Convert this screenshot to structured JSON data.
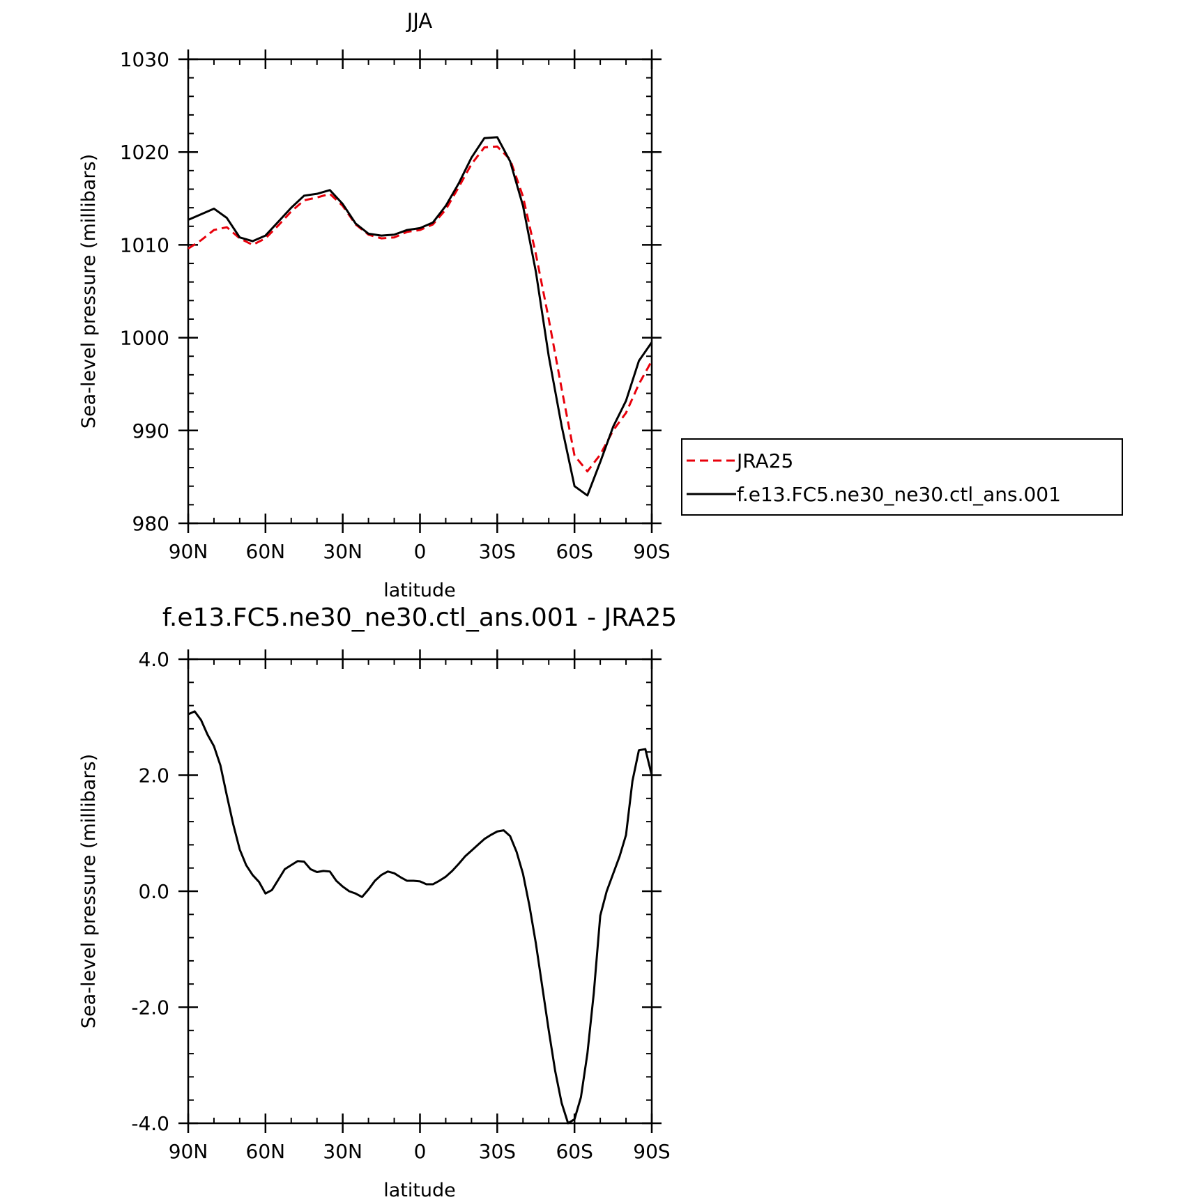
{
  "chart_data": [
    {
      "type": "line",
      "title": "JJA",
      "xlabel": "latitude",
      "ylabel": "Sea-level pressure (millibars)",
      "xlim": [
        90,
        -90
      ],
      "ylim": [
        980,
        1030
      ],
      "x_ticks": [
        90,
        60,
        30,
        0,
        -30,
        -60,
        -90
      ],
      "x_tick_labels": [
        "90N",
        "60N",
        "30N",
        "0",
        "30S",
        "60S",
        "90S"
      ],
      "y_ticks": [
        980,
        990,
        1000,
        1010,
        1020,
        1030
      ],
      "y_tick_labels": [
        "980",
        "990",
        "1000",
        "1010",
        "1020",
        "1030"
      ],
      "legend_position": "right",
      "series": [
        {
          "name": "JRA25",
          "color": "#e8000b",
          "style": "dashed",
          "x": [
            90,
            85,
            80,
            75,
            70,
            65,
            60,
            55,
            50,
            45,
            40,
            35,
            30,
            25,
            20,
            15,
            10,
            5,
            0,
            -5,
            -10,
            -15,
            -20,
            -25,
            -30,
            -35,
            -40,
            -45,
            -50,
            -55,
            -60,
            -65,
            -70,
            -75,
            -80,
            -85,
            -90
          ],
          "y": [
            1009.6,
            1010.5,
            1011.6,
            1011.9,
            1010.7,
            1010.0,
            1010.7,
            1012.1,
            1013.6,
            1014.8,
            1015.1,
            1015.5,
            1014.2,
            1012.2,
            1011.1,
            1010.7,
            1010.8,
            1011.4,
            1011.6,
            1012.2,
            1013.8,
            1016.2,
            1018.7,
            1020.5,
            1020.6,
            1019.2,
            1015.2,
            1009.0,
            1002.0,
            994.5,
            987.3,
            985.6,
            987.4,
            990.0,
            991.9,
            995.0,
            997.5
          ]
        },
        {
          "name": "f.e13.FC5.ne30_ne30.ctl_ans.001",
          "color": "#000000",
          "style": "solid",
          "x": [
            90,
            85,
            80,
            75,
            70,
            65,
            60,
            55,
            50,
            45,
            40,
            35,
            30,
            25,
            20,
            15,
            10,
            5,
            0,
            -5,
            -10,
            -15,
            -20,
            -25,
            -30,
            -35,
            -40,
            -45,
            -50,
            -55,
            -60,
            -65,
            -70,
            -75,
            -80,
            -85,
            -90
          ],
          "y": [
            1012.7,
            1013.3,
            1013.9,
            1012.9,
            1010.8,
            1010.4,
            1011.0,
            1012.5,
            1014.0,
            1015.3,
            1015.5,
            1015.9,
            1014.4,
            1012.3,
            1011.2,
            1011.0,
            1011.1,
            1011.6,
            1011.8,
            1012.4,
            1014.2,
            1016.6,
            1019.4,
            1021.5,
            1021.6,
            1019.0,
            1014.2,
            1007.1,
            998.0,
            990.5,
            984.0,
            983.0,
            986.6,
            990.4,
            993.2,
            997.5,
            999.5
          ]
        }
      ]
    },
    {
      "type": "line",
      "title": "f.e13.FC5.ne30_ne30.ctl_ans.001 - JRA25",
      "xlabel": "latitude",
      "ylabel": "Sea-level pressure (millibars)",
      "xlim": [
        90,
        -90
      ],
      "ylim": [
        -4.0,
        4.0
      ],
      "x_ticks": [
        90,
        60,
        30,
        0,
        -30,
        -60,
        -90
      ],
      "x_tick_labels": [
        "90N",
        "60N",
        "30N",
        "0",
        "30S",
        "60S",
        "90S"
      ],
      "y_ticks": [
        -4.0,
        -2.0,
        0.0,
        2.0,
        4.0
      ],
      "y_tick_labels": [
        "-4.0",
        "-2.0",
        "0.0",
        "2.0",
        "4.0"
      ],
      "series": [
        {
          "color": "#000000",
          "style": "solid",
          "x": [
            90,
            87.5,
            85,
            82.5,
            80,
            77.5,
            75,
            72.5,
            70,
            67.5,
            65,
            62.5,
            60,
            57.5,
            55,
            52.5,
            50,
            47.5,
            45,
            42.5,
            40,
            37.5,
            35,
            32.5,
            30,
            27.5,
            25,
            22.5,
            20,
            17.5,
            15,
            12.5,
            10,
            7.5,
            5,
            2.5,
            0,
            -2.5,
            -5,
            -7.5,
            -10,
            -12.5,
            -15,
            -17.5,
            -20,
            -22.5,
            -25,
            -27.5,
            -30,
            -32.5,
            -35,
            -37.5,
            -40,
            -42.5,
            -45,
            -47.5,
            -50,
            -52.5,
            -55,
            -57.5,
            -60,
            -62.5,
            -65,
            -67.5,
            -70,
            -72.5,
            -75,
            -77.5,
            -80,
            -82.5,
            -85,
            -87.5,
            -90
          ],
          "y": [
            3.05,
            3.1,
            2.95,
            2.7,
            2.5,
            2.17,
            1.65,
            1.15,
            0.72,
            0.45,
            0.28,
            0.16,
            -0.04,
            0.02,
            0.2,
            0.38,
            0.45,
            0.52,
            0.51,
            0.38,
            0.33,
            0.35,
            0.34,
            0.18,
            0.08,
            0.0,
            -0.04,
            -0.1,
            0.03,
            0.18,
            0.28,
            0.34,
            0.31,
            0.24,
            0.18,
            0.18,
            0.17,
            0.12,
            0.12,
            0.18,
            0.25,
            0.35,
            0.47,
            0.6,
            0.7,
            0.8,
            0.9,
            0.97,
            1.03,
            1.05,
            0.95,
            0.68,
            0.3,
            -0.25,
            -0.9,
            -1.65,
            -2.4,
            -3.1,
            -3.65,
            -4.0,
            -3.93,
            -3.55,
            -2.8,
            -1.75,
            -0.42,
            0.0,
            0.3,
            0.6,
            0.97,
            1.9,
            2.43,
            2.45,
            2.0
          ]
        }
      ]
    }
  ]
}
